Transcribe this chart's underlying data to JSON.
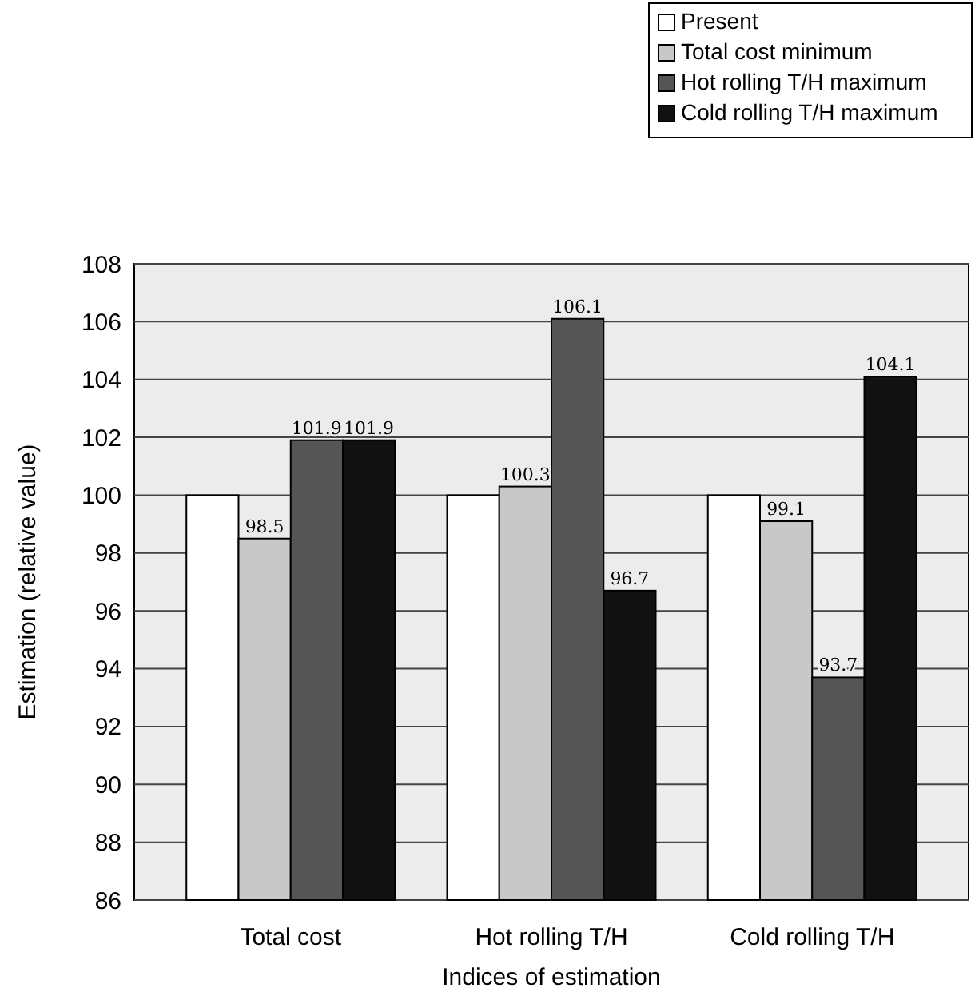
{
  "chart_data": {
    "type": "bar",
    "xlabel": "Indices of estimation",
    "ylabel": "Estimation (relative value)",
    "categories": [
      "Total cost",
      "Hot rolling T/H",
      "Cold rolling T/H"
    ],
    "series": [
      {
        "name": "Present",
        "color": "#ffffff",
        "values": [
          100,
          100,
          100
        ],
        "value_labels": [
          null,
          null,
          null
        ]
      },
      {
        "name": "Total cost minimum",
        "color": "#c8c8c8",
        "values": [
          98.5,
          100.3,
          99.1
        ],
        "value_labels": [
          "98.5",
          "100.3",
          "99.1"
        ]
      },
      {
        "name": "Hot rolling T/H maximum",
        "color": "#555555",
        "values": [
          101.9,
          106.1,
          93.7
        ],
        "value_labels": [
          "101.9",
          "106.1",
          "93.7"
        ]
      },
      {
        "name": "Cold rolling T/H maximum",
        "color": "#111111",
        "values": [
          101.9,
          96.7,
          104.1
        ],
        "value_labels": [
          "101.9",
          "96.7",
          "104.1"
        ]
      }
    ],
    "ylim": [
      86,
      108
    ],
    "yticks": [
      86,
      88,
      90,
      92,
      94,
      96,
      98,
      100,
      102,
      104,
      106,
      108
    ],
    "grid": "y",
    "legend": "top right"
  }
}
